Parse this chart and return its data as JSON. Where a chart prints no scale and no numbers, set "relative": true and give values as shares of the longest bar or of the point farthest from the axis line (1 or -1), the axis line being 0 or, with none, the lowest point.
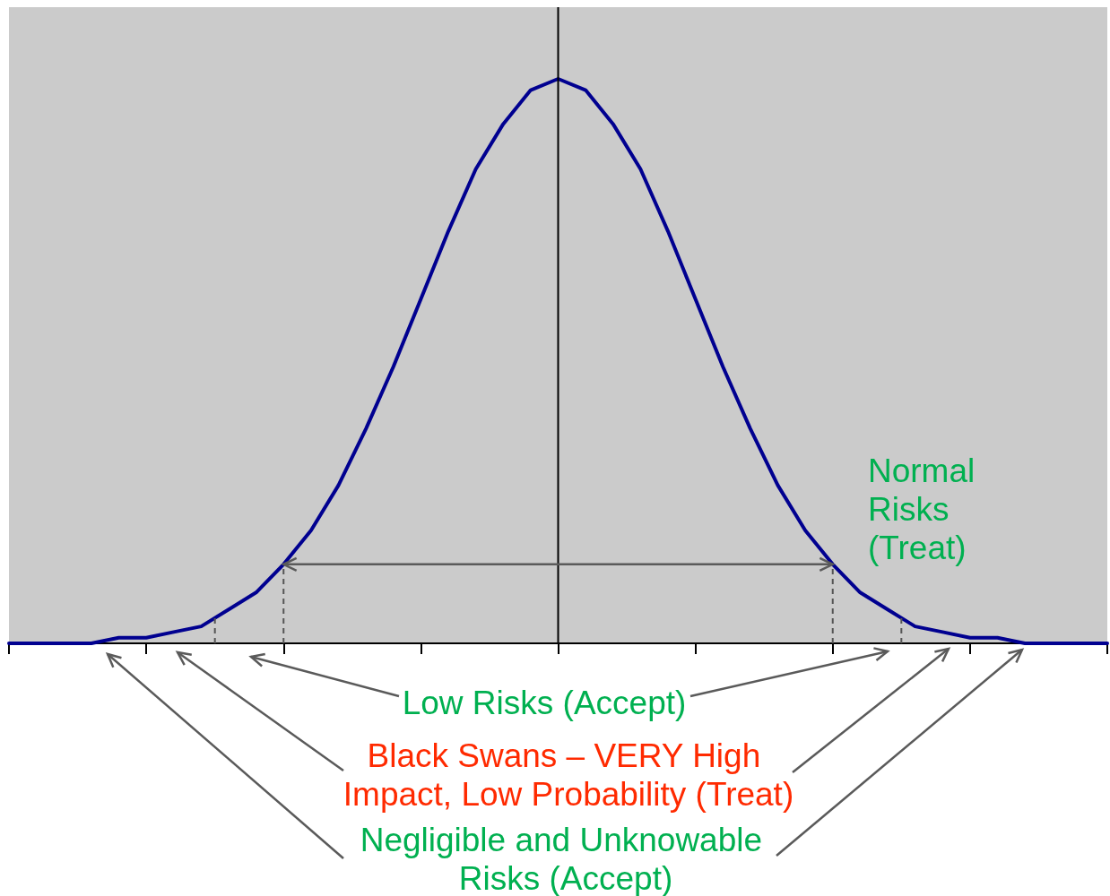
{
  "chart_data": {
    "type": "line",
    "relative": true,
    "categories": [
      null,
      null,
      null,
      null,
      null,
      null,
      null,
      null,
      null,
      null,
      null,
      null,
      null,
      null,
      null,
      null,
      null,
      null,
      null,
      null,
      null,
      null,
      null,
      null,
      null,
      null,
      null,
      null,
      null,
      null,
      null,
      null,
      null,
      null,
      null,
      null,
      null,
      null,
      null,
      null,
      null
    ],
    "series": [
      {
        "color": "#000090",
        "values": [
          0,
          0,
          0,
          0,
          0.01,
          0.01,
          0.02,
          0.03,
          0.06,
          0.09,
          0.14,
          0.2,
          0.28,
          0.38,
          0.49,
          0.61,
          0.73,
          0.84,
          0.92,
          0.98,
          1,
          0.98,
          0.92,
          0.84,
          0.73,
          0.61,
          0.49,
          0.38,
          0.28,
          0.2,
          0.14,
          0.09,
          0.06,
          0.03,
          0.02,
          0.01,
          0.01,
          0,
          0,
          0,
          0
        ]
      }
    ],
    "grid": false,
    "marker": "none",
    "line_style": "solid",
    "annotations": [
      "Normal Risks (Treat)",
      "Low Risks (Accept)",
      "Black Swans – VERY High Impact, Low Probability (Treat)",
      "Negligible and Unknowable Risks (Accept)"
    ]
  }
}
